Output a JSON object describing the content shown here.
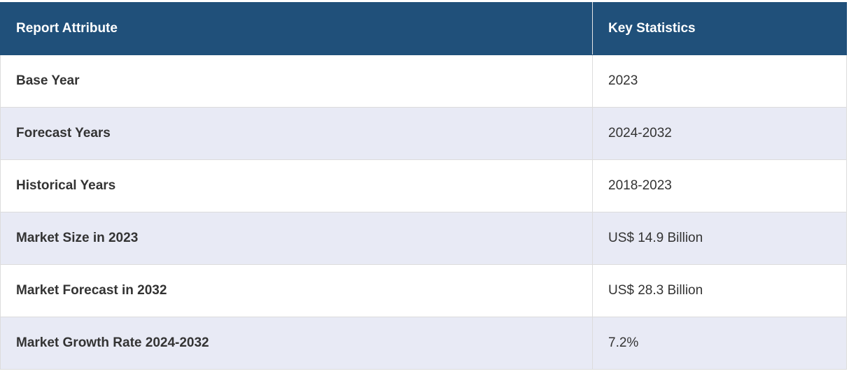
{
  "table": {
    "header": [
      "Report Attribute",
      "Key Statistics"
    ],
    "rows": [
      [
        "Base Year",
        "2023"
      ],
      [
        "Forecast Years",
        "2024-2032"
      ],
      [
        "Historical Years",
        "2018-2023"
      ],
      [
        "Market Size in 2023",
        "US$ 14.9 Billion"
      ],
      [
        "Market Forecast in 2032",
        "US$ 28.3 Billion"
      ],
      [
        "Market Growth Rate 2024-2032",
        "7.2%"
      ]
    ]
  }
}
